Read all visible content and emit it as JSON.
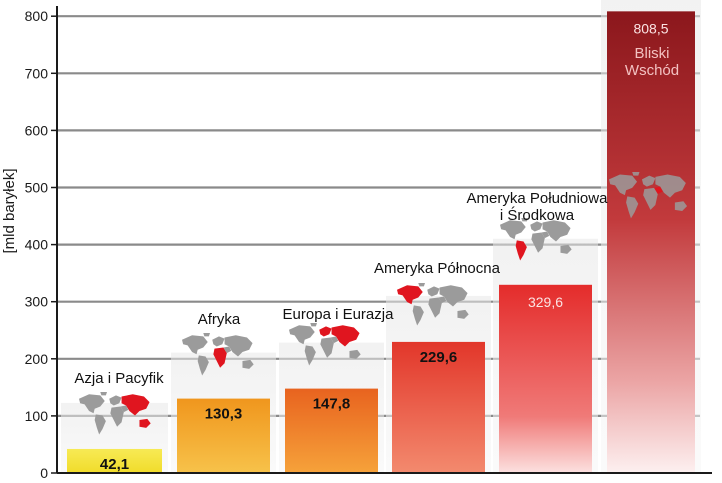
{
  "chart_data": {
    "type": "bar",
    "title": "",
    "xlabel": "",
    "ylabel": "[mld baryłek]",
    "ylim": [
      0,
      820
    ],
    "yticks": [
      0,
      100,
      200,
      300,
      400,
      500,
      600,
      700,
      800
    ],
    "grid": true,
    "categories": [
      "Azja i Pacyfik",
      "Afryka",
      "Europa i Eurazja",
      "Ameryka Północna",
      "Ameryka Południowa i Środkowa",
      "Bliski Wschód"
    ],
    "values": [
      42.1,
      130.3,
      147.8,
      229.6,
      329.6,
      808.5
    ],
    "value_labels": [
      "42,1",
      "130,3",
      "147,8",
      "229,6",
      "329,6",
      "808,5"
    ],
    "category_labels": [
      [
        "Azja i Pacyfik"
      ],
      [
        "Afryka"
      ],
      [
        "Europa i Eurazja"
      ],
      [
        "Ameryka Północna"
      ],
      [
        "Ameryka Południowa",
        "i Środkowa"
      ],
      [
        "Bliski",
        "Wschód"
      ]
    ],
    "colors": {
      "bar_yellow": "#f3e23c",
      "bar_orange": "#f09a1e",
      "bar_orange_red": "#ea6a1f",
      "bar_red": "#e53a2a",
      "bar_red_bright": "#e6302c",
      "bar_dark_red": "#8f1a1f",
      "grid": "#8a8a8a",
      "axis": "#1a1a1a",
      "map_land": "#9b9b9b",
      "map_highlight": "#e0151f"
    },
    "icons": [
      "world-map-icon",
      "world-map-icon",
      "world-map-icon",
      "world-map-icon",
      "world-map-icon",
      "world-map-icon"
    ]
  }
}
